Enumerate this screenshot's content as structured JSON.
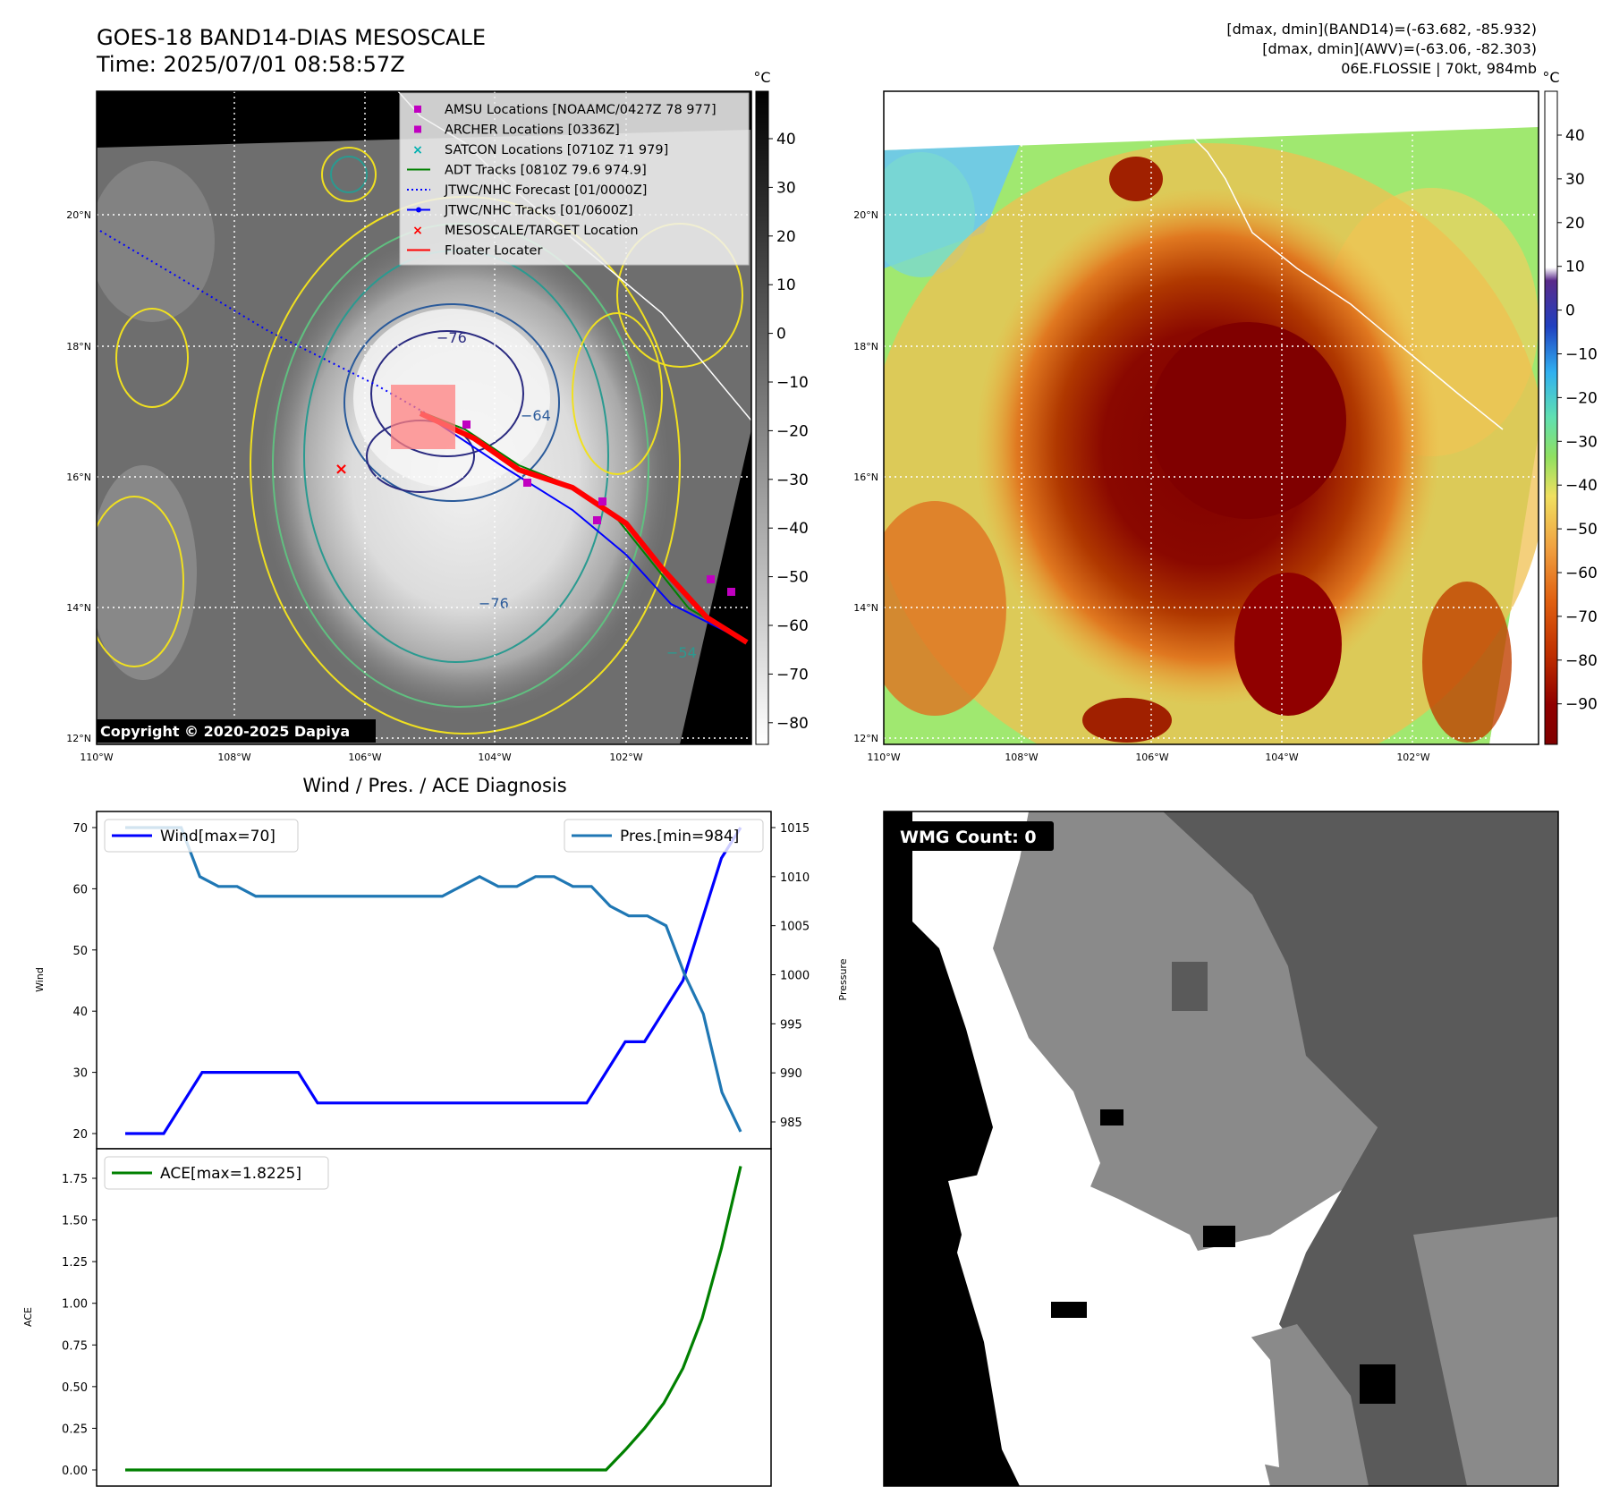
{
  "header": {
    "title_line1": "GOES-18 BAND14-DIAS MESOSCALE",
    "title_line2": "Time: 2025/07/01 08:58:57Z",
    "info_line1": "[dmax, dmin](BAND14)=(-63.682, -85.932)",
    "info_line2": "[dmax, dmin](AWV)=(-63.06, -82.303)",
    "info_line3": "06E.FLOSSIE | 70kt, 984mb"
  },
  "ir_panel": {
    "lon_ticks": [
      "110°W",
      "108°W",
      "106°W",
      "104°W",
      "102°W"
    ],
    "lat_ticks": [
      "20°N",
      "18°N",
      "16°N",
      "14°N",
      "12°N"
    ],
    "copyright": "Copyright © 2020-2025 Dapiya",
    "colorbar_unit": "°C",
    "colorbar_ticks": [
      "40",
      "30",
      "20",
      "10",
      "0",
      "−10",
      "−20",
      "−30",
      "−40",
      "−50",
      "−60",
      "−70",
      "−80"
    ],
    "contour_labels": [
      "−76",
      "−64",
      "−76",
      "−54"
    ],
    "legend": [
      {
        "label": "AMSU Locations [NOAAMC/0427Z 78 977]",
        "color": "#c000c0"
      },
      {
        "label": "ARCHER Locations [0336Z]",
        "color": "#c000c0"
      },
      {
        "label": "SATCON Locations [0710Z 71 979]",
        "color": "#00b0b0"
      },
      {
        "label": "ADT Tracks [0810Z 79.6 974.9]",
        "color": "#008000"
      },
      {
        "label": "JTWC/NHC Forecast [01/0000Z]",
        "color": "#0000ff"
      },
      {
        "label": "JTWC/NHC Tracks [01/0600Z]",
        "color": "#0000ff"
      },
      {
        "label": "MESOSCALE/TARGET Location",
        "color": "#ff0000"
      },
      {
        "label": "Floater Locater",
        "color": "#ff0000"
      }
    ]
  },
  "awv_panel": {
    "lon_ticks": [
      "110°W",
      "108°W",
      "106°W",
      "104°W",
      "102°W"
    ],
    "lat_ticks": [
      "20°N",
      "18°N",
      "16°N",
      "14°N",
      "12°N"
    ],
    "colorbar_unit": "°C",
    "colorbar_ticks": [
      "40",
      "30",
      "20",
      "10",
      "0",
      "−10",
      "−20",
      "−30",
      "−40",
      "−50",
      "−60",
      "−70",
      "−80",
      "−90"
    ]
  },
  "diag_panel": {
    "title": "Wind / Pres. / ACE Diagnosis",
    "wind_label": "Wind",
    "pres_label": "Pressure",
    "ace_label": "ACE",
    "wind_legend": "Wind[max=70]",
    "pres_legend": "Pres.[min=984]",
    "ace_legend": "ACE[max=1.8225]",
    "wind_ticks": [
      "20",
      "30",
      "40",
      "50",
      "60",
      "70"
    ],
    "pres_ticks": [
      "985",
      "990",
      "995",
      "1000",
      "1005",
      "1010",
      "1015"
    ],
    "ace_ticks": [
      "0.00",
      "0.25",
      "0.50",
      "0.75",
      "1.00",
      "1.25",
      "1.50",
      "1.75"
    ],
    "colors": {
      "wind": "#0000ff",
      "pres": "#1f77b4",
      "ace": "#008000"
    }
  },
  "wmg_panel": {
    "badge": "WMG Count: 0"
  },
  "chart_data": [
    {
      "type": "line",
      "title": "Wind / Pres. / ACE Diagnosis",
      "ylabel": "Wind",
      "ylim": [
        19,
        73
      ],
      "series": [
        {
          "name": "Wind[max=70]",
          "values": [
            20,
            20,
            20,
            25,
            30,
            30,
            30,
            30,
            30,
            30,
            25,
            25,
            25,
            25,
            25,
            25,
            25,
            25,
            25,
            25,
            25,
            25,
            25,
            25,
            25,
            30,
            35,
            35,
            40,
            45,
            55,
            65,
            70
          ]
        }
      ]
    },
    {
      "type": "line",
      "ylabel": "Pressure",
      "ylim": [
        983,
        1016
      ],
      "series": [
        {
          "name": "Pres.[min=984]",
          "values": [
            1015,
            1015,
            1015,
            1015,
            1010,
            1009,
            1009,
            1008,
            1008,
            1008,
            1008,
            1008,
            1008,
            1008,
            1008,
            1008,
            1008,
            1008,
            1009,
            1010,
            1009,
            1009,
            1010,
            1010,
            1009,
            1009,
            1007,
            1006,
            1006,
            1005,
            1000,
            996,
            988,
            984
          ]
        }
      ]
    },
    {
      "type": "line",
      "ylabel": "ACE",
      "ylim": [
        -0.05,
        1.9
      ],
      "series": [
        {
          "name": "ACE[max=1.8225]",
          "values": [
            0,
            0,
            0,
            0,
            0,
            0,
            0,
            0,
            0,
            0,
            0,
            0,
            0,
            0,
            0,
            0,
            0,
            0,
            0,
            0,
            0,
            0,
            0,
            0,
            0,
            0,
            0.12,
            0.25,
            0.4,
            0.61,
            0.91,
            1.33,
            1.8225
          ]
        }
      ]
    }
  ]
}
